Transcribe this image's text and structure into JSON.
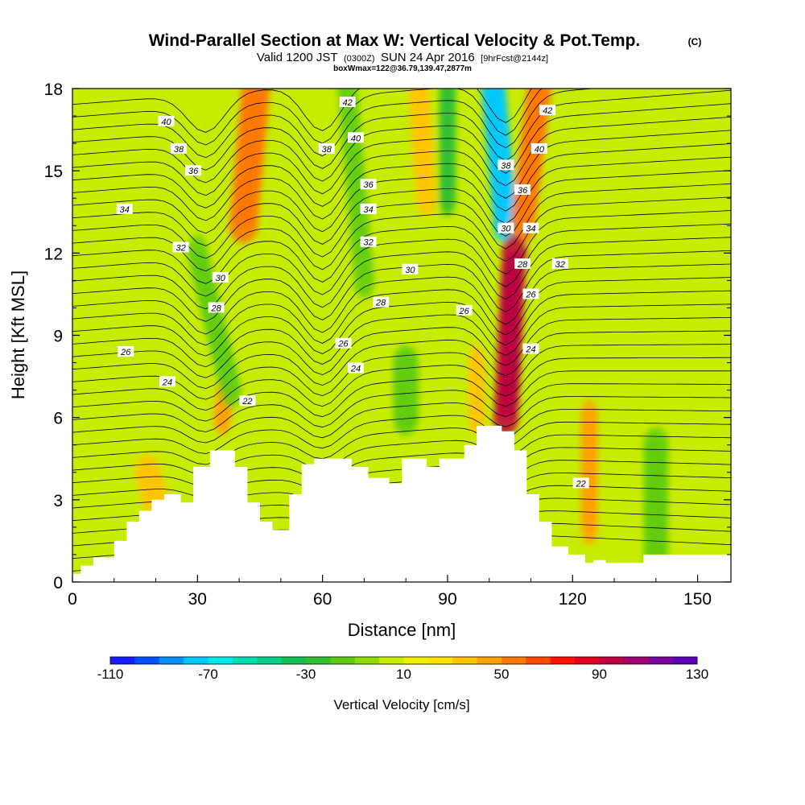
{
  "chart_data": {
    "type": "heatmap",
    "title": "Wind-Parallel Section at Max W: Vertical Velocity & Pot.Temp.",
    "title_mark": "(C)",
    "subtitle": {
      "valid": "Valid 1200 JST",
      "utc": "(0300Z)",
      "date": "SUN 24 Apr 2016",
      "fcst": "[9hrFcst@2144z]"
    },
    "box_note": "boxWmax=122@36.79,139.47,2877m",
    "xlabel": "Distance [nm]",
    "ylabel": "Height [Kft MSL]",
    "xlim": [
      0,
      158
    ],
    "ylim": [
      0,
      18
    ],
    "x_ticks": [
      "0",
      "30",
      "60",
      "90",
      "120",
      "150"
    ],
    "y_ticks": [
      "0",
      "3",
      "6",
      "9",
      "12",
      "15",
      "18"
    ],
    "colorbar": {
      "label": "Vertical Velocity [cm/s]",
      "range": [
        -110,
        130
      ],
      "step": 10,
      "tick_labels": [
        "-110",
        "-70",
        "-30",
        "10",
        "50",
        "90",
        "130"
      ],
      "colors": [
        "#1a1aff",
        "#0050ff",
        "#0090ff",
        "#00c8ff",
        "#00e8e8",
        "#00dcb0",
        "#00d088",
        "#10c050",
        "#30c030",
        "#60cc10",
        "#90dc00",
        "#c8ec00",
        "#f0f000",
        "#ffe000",
        "#ffc400",
        "#ffa000",
        "#ff7800",
        "#ff4a00",
        "#ff1000",
        "#e00020",
        "#c00040",
        "#a00070",
        "#7c00a0",
        "#5a00b8"
      ]
    },
    "terrain_kft": [
      [
        0,
        0.3
      ],
      [
        2,
        0.3
      ],
      [
        2,
        0.6
      ],
      [
        5,
        0.6
      ],
      [
        5,
        0.9
      ],
      [
        10,
        0.9
      ],
      [
        10,
        1.5
      ],
      [
        13,
        1.5
      ],
      [
        13,
        2.2
      ],
      [
        16,
        2.2
      ],
      [
        16,
        2.6
      ],
      [
        19,
        2.6
      ],
      [
        19,
        3.0
      ],
      [
        22,
        3.0
      ],
      [
        22,
        3.2
      ],
      [
        26,
        3.2
      ],
      [
        26,
        2.9
      ],
      [
        29,
        2.9
      ],
      [
        29,
        4.2
      ],
      [
        33,
        4.2
      ],
      [
        33,
        4.8
      ],
      [
        39,
        4.8
      ],
      [
        39,
        4.2
      ],
      [
        42,
        4.2
      ],
      [
        42,
        2.9
      ],
      [
        45,
        2.9
      ],
      [
        45,
        2.2
      ],
      [
        48,
        2.2
      ],
      [
        48,
        1.9
      ],
      [
        52,
        1.9
      ],
      [
        52,
        3.2
      ],
      [
        55,
        3.2
      ],
      [
        55,
        4.3
      ],
      [
        58,
        4.3
      ],
      [
        58,
        4.5
      ],
      [
        67,
        4.5
      ],
      [
        67,
        4.2
      ],
      [
        71,
        4.2
      ],
      [
        71,
        3.8
      ],
      [
        76,
        3.8
      ],
      [
        76,
        3.6
      ],
      [
        79,
        3.6
      ],
      [
        79,
        4.5
      ],
      [
        85,
        4.5
      ],
      [
        85,
        4.2
      ],
      [
        88,
        4.2
      ],
      [
        88,
        4.5
      ],
      [
        94,
        4.5
      ],
      [
        94,
        5.0
      ],
      [
        97,
        5.0
      ],
      [
        97,
        5.7
      ],
      [
        103,
        5.7
      ],
      [
        103,
        5.5
      ],
      [
        106,
        5.5
      ],
      [
        106,
        4.8
      ],
      [
        109,
        4.8
      ],
      [
        109,
        3.2
      ],
      [
        112,
        3.2
      ],
      [
        112,
        2.2
      ],
      [
        115,
        2.2
      ],
      [
        115,
        1.3
      ],
      [
        119,
        1.3
      ],
      [
        119,
        1.0
      ],
      [
        123,
        1.0
      ],
      [
        123,
        0.7
      ],
      [
        125,
        0.7
      ],
      [
        125,
        0.8
      ],
      [
        128,
        0.8
      ],
      [
        128,
        0.7
      ],
      [
        137,
        0.7
      ],
      [
        137,
        1.0
      ],
      [
        158,
        1.0
      ]
    ],
    "theta_contours_C": [
      22,
      24,
      26,
      28,
      30,
      32,
      34,
      36,
      38,
      40,
      42
    ],
    "theta_label_positions": [
      {
        "t": 40,
        "x": 22.5,
        "y": 16.8
      },
      {
        "t": 38,
        "x": 25.5,
        "y": 15.8
      },
      {
        "t": 36,
        "x": 29.0,
        "y": 15.0
      },
      {
        "t": 34,
        "x": 12.5,
        "y": 13.6
      },
      {
        "t": 32,
        "x": 26.0,
        "y": 12.2
      },
      {
        "t": 30,
        "x": 35.5,
        "y": 11.1
      },
      {
        "t": 28,
        "x": 34.5,
        "y": 10.0
      },
      {
        "t": 26,
        "x": 12.8,
        "y": 8.4
      },
      {
        "t": 24,
        "x": 22.8,
        "y": 7.3
      },
      {
        "t": 22,
        "x": 42.0,
        "y": 6.6
      },
      {
        "t": 42,
        "x": 66.0,
        "y": 17.5
      },
      {
        "t": 40,
        "x": 68.0,
        "y": 16.2
      },
      {
        "t": 38,
        "x": 61.0,
        "y": 15.8
      },
      {
        "t": 36,
        "x": 71.0,
        "y": 14.5
      },
      {
        "t": 34,
        "x": 71.0,
        "y": 13.6
      },
      {
        "t": 32,
        "x": 71.0,
        "y": 12.4
      },
      {
        "t": 30,
        "x": 81.0,
        "y": 11.4
      },
      {
        "t": 28,
        "x": 74.0,
        "y": 10.2
      },
      {
        "t": 26,
        "x": 65.0,
        "y": 8.7
      },
      {
        "t": 24,
        "x": 68.0,
        "y": 7.8
      },
      {
        "t": 26,
        "x": 94.0,
        "y": 9.9
      },
      {
        "t": 42,
        "x": 114.0,
        "y": 17.2
      },
      {
        "t": 40,
        "x": 112.0,
        "y": 15.8
      },
      {
        "t": 38,
        "x": 104.0,
        "y": 15.2
      },
      {
        "t": 36,
        "x": 108.0,
        "y": 14.3
      },
      {
        "t": 34,
        "x": 110.0,
        "y": 12.9
      },
      {
        "t": 30,
        "x": 104.0,
        "y": 12.9
      },
      {
        "t": 28,
        "x": 108.0,
        "y": 11.6
      },
      {
        "t": 32,
        "x": 117.0,
        "y": 11.6
      },
      {
        "t": 26,
        "x": 110.0,
        "y": 10.5
      },
      {
        "t": 24,
        "x": 110.0,
        "y": 8.5
      },
      {
        "t": 22,
        "x": 122.0,
        "y": 3.6
      }
    ]
  }
}
